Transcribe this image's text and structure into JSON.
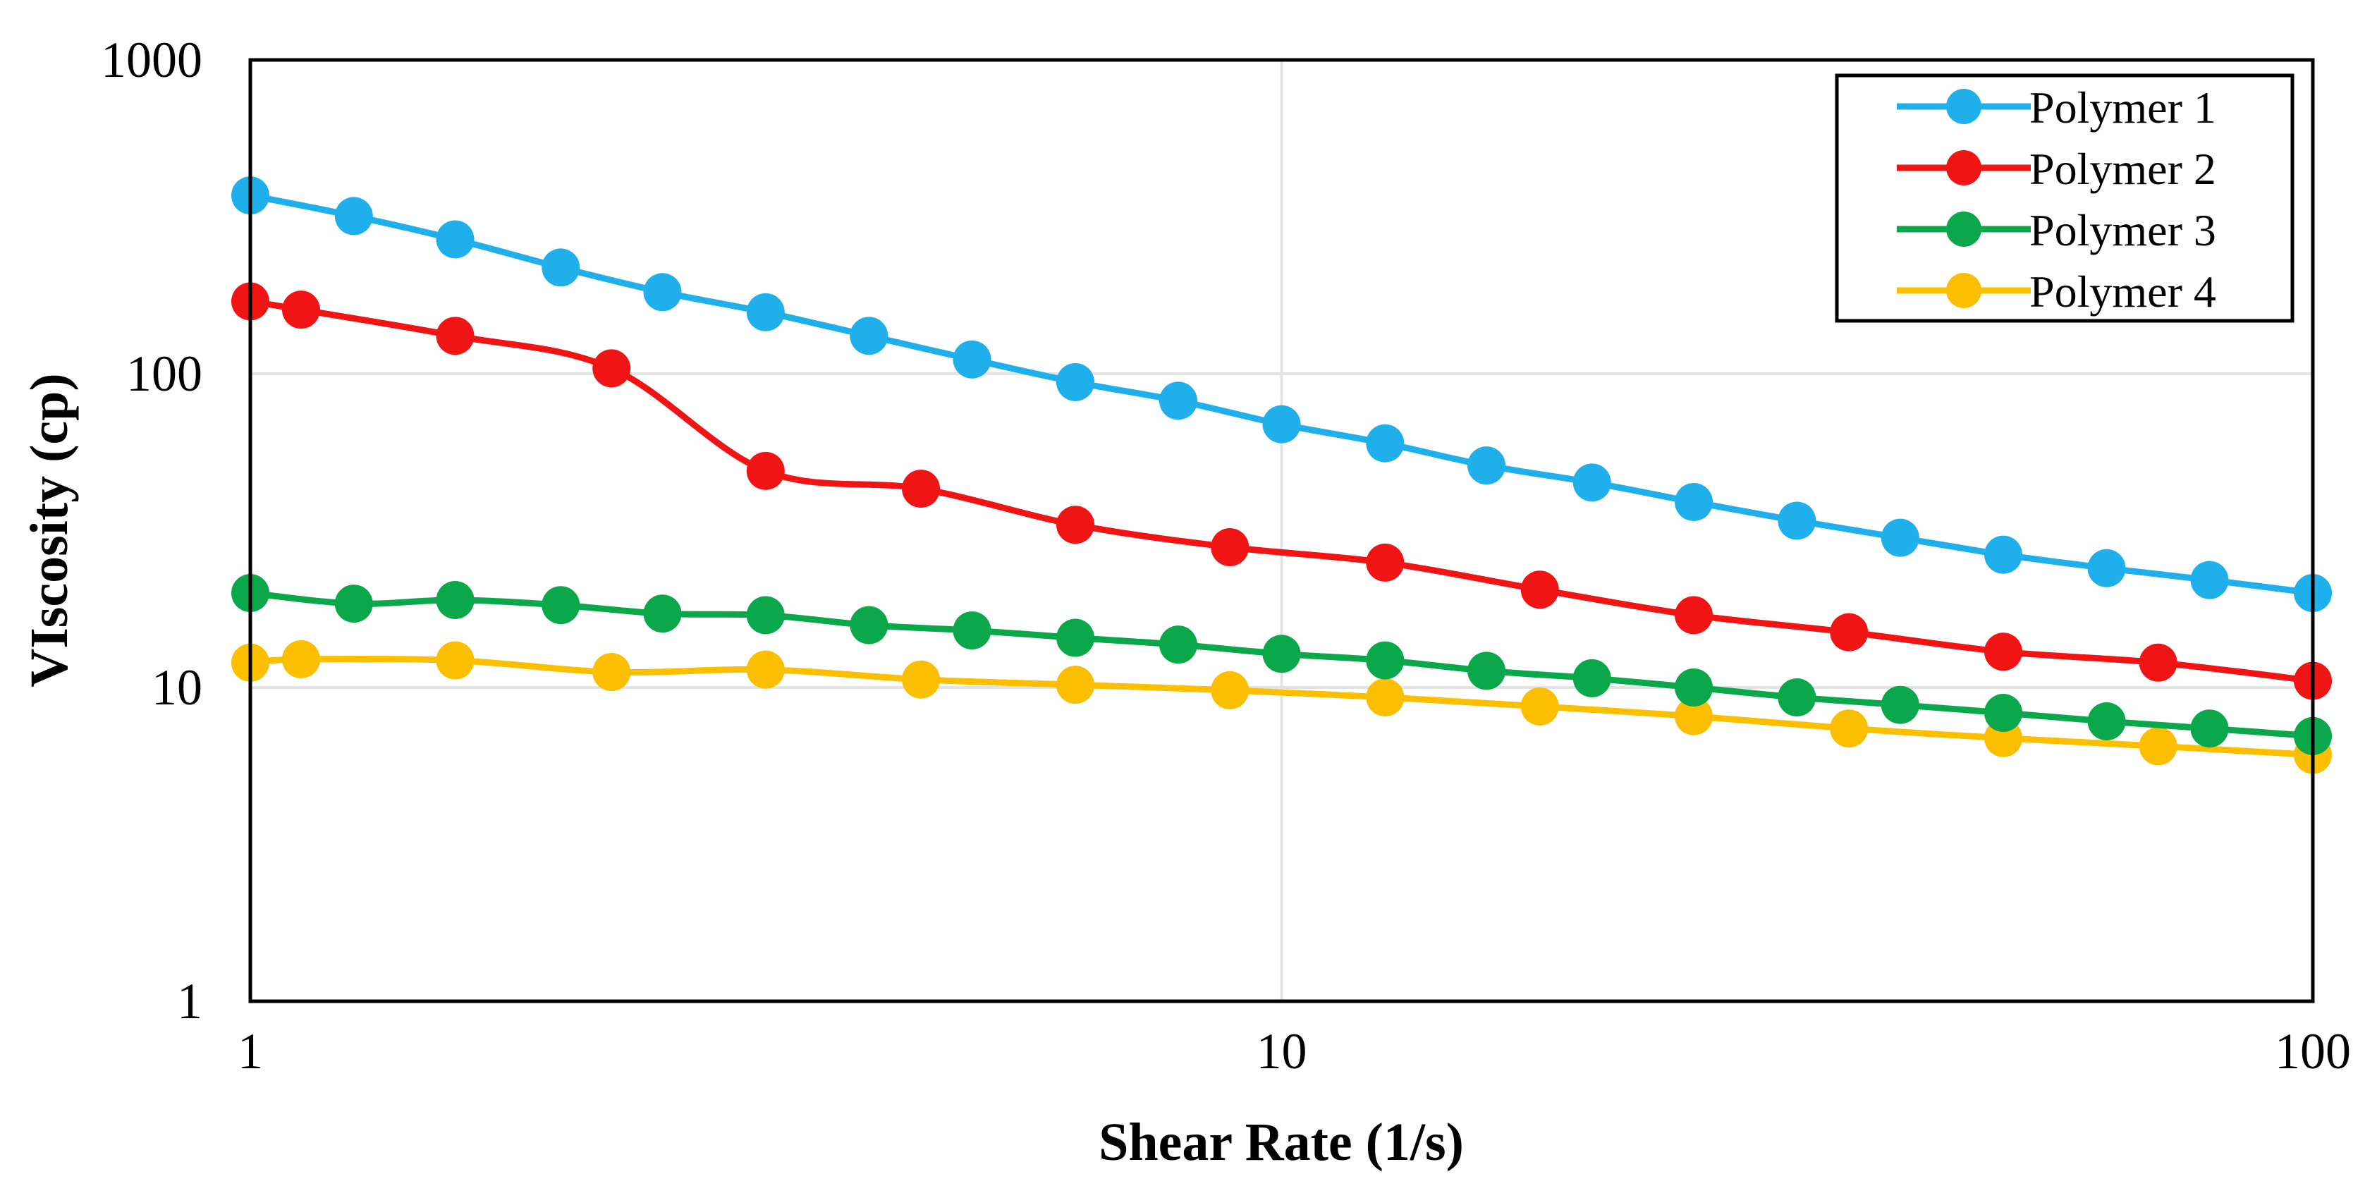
{
  "chart_data": {
    "type": "line",
    "title": "",
    "xlabel": "Shear Rate (1/s)",
    "ylabel": "VIscosity (cp)",
    "xscale": "log",
    "yscale": "log",
    "xlim": [
      1,
      100
    ],
    "ylim": [
      1,
      1000
    ],
    "xticks": [
      1,
      10,
      100
    ],
    "xtick_labels": [
      "1",
      "10",
      "100"
    ],
    "yticks": [
      1,
      10,
      100,
      1000
    ],
    "ytick_labels": [
      "1",
      "10",
      "100",
      "1000"
    ],
    "grid": true,
    "legend_position": "top-right",
    "series": [
      {
        "name": "Polymer 1",
        "color": "#1fb0ec",
        "x": [
          1.0,
          1.26,
          1.58,
          2.0,
          2.51,
          3.16,
          3.98,
          5.01,
          6.31,
          7.94,
          10.0,
          12.6,
          15.8,
          20.0,
          25.1,
          31.6,
          39.8,
          50.1,
          63.1,
          79.4,
          100.0
        ],
        "y": [
          370,
          318,
          268,
          218,
          182,
          157,
          132,
          111,
          94,
          82,
          69,
          60,
          51,
          45,
          39,
          34,
          30,
          26.5,
          24,
          22,
          20
        ]
      },
      {
        "name": "Polymer 2",
        "color": "#f01414",
        "x": [
          1.0,
          1.12,
          1.58,
          2.24,
          3.16,
          4.47,
          6.31,
          8.91,
          12.6,
          17.8,
          25.1,
          35.5,
          50.1,
          70.8,
          100.0
        ],
        "y": [
          170,
          160,
          132,
          104,
          49,
          43,
          33,
          28,
          25,
          20.5,
          17,
          15,
          13,
          12,
          10.5
        ]
      },
      {
        "name": "Polymer 3",
        "color": "#0aa84a",
        "x": [
          1.0,
          1.26,
          1.58,
          2.0,
          2.51,
          3.16,
          3.98,
          5.01,
          6.31,
          7.94,
          10.0,
          12.6,
          15.8,
          20.0,
          25.1,
          31.6,
          39.8,
          50.1,
          63.1,
          79.4,
          100.0
        ],
        "y": [
          20,
          18.5,
          19,
          18.3,
          17.2,
          17,
          15.8,
          15.2,
          14.4,
          13.7,
          12.8,
          12.2,
          11.3,
          10.7,
          10,
          9.3,
          8.8,
          8.3,
          7.8,
          7.4,
          7
        ]
      },
      {
        "name": "Polymer 4",
        "color": "#fbbf00",
        "x": [
          1.0,
          1.12,
          1.58,
          2.24,
          3.16,
          4.47,
          6.31,
          8.91,
          12.6,
          17.8,
          25.1,
          35.5,
          50.1,
          70.8,
          100.0
        ],
        "y": [
          12,
          12.3,
          12.2,
          11.2,
          11.4,
          10.6,
          10.2,
          9.8,
          9.3,
          8.7,
          8.1,
          7.4,
          6.9,
          6.5,
          6.1
        ]
      }
    ]
  }
}
